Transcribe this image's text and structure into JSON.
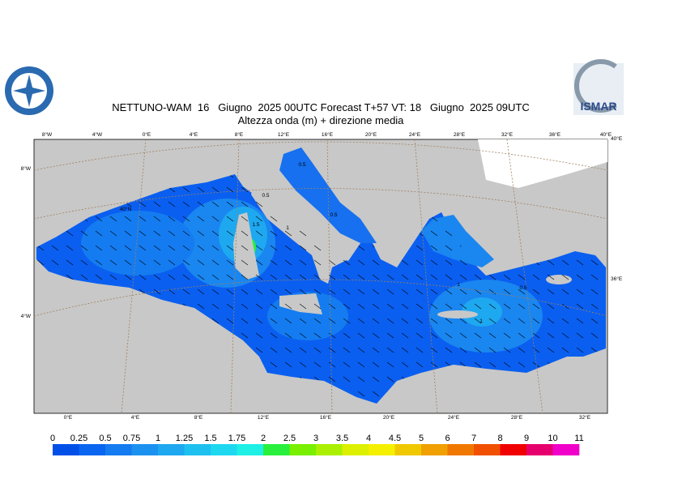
{
  "header": {
    "title": "NETTUNO-WAM  16   Giugno  2025 00UTC Forecast T+57 VT: 18   Giugno  2025 09UTC",
    "subtitle": "Altezza onda (m) + direzione media"
  },
  "logo": {
    "text": "ISMAR"
  },
  "map": {
    "top_labels": [
      "8°W",
      "4°W",
      "0°E",
      "4°E",
      "8°E",
      "12°E",
      "16°E",
      "20°E",
      "24°E",
      "28°E",
      "32°E",
      "36°E",
      "40°E"
    ],
    "bottom_labels": [
      "0°E",
      "4°E",
      "8°E",
      "12°E",
      "16°E",
      "20°E",
      "24°E",
      "28°E",
      "32°E"
    ],
    "left_labels": [
      "8°W",
      "4°W"
    ],
    "right_labels": [
      "40°E",
      "36°E"
    ],
    "lat_label": "40°N",
    "contour_labels": [
      0.5,
      0.5,
      1.5,
      1,
      0.5,
      1,
      1,
      0.5
    ]
  },
  "legend": {
    "labels": [
      0,
      0.25,
      0.5,
      0.75,
      1,
      1.25,
      1.5,
      1.75,
      2,
      2.5,
      3,
      3.5,
      4,
      4.5,
      5,
      6,
      7,
      8,
      9,
      10,
      11
    ],
    "colors": [
      "#0050e8",
      "#0a66f0",
      "#147cf0",
      "#1c92f0",
      "#1ea8f0",
      "#1ec0f0",
      "#1ed8f0",
      "#1ef0e6",
      "#28f03c",
      "#78f000",
      "#aaf000",
      "#dcf000",
      "#f5f000",
      "#f0c800",
      "#f0a000",
      "#f07800",
      "#f05000",
      "#f00000",
      "#e6006e",
      "#f000c8"
    ]
  }
}
